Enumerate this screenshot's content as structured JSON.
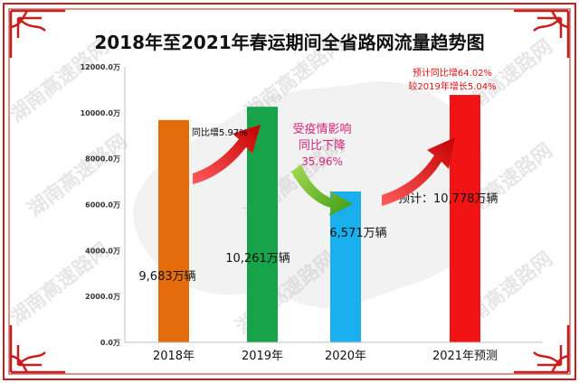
{
  "chart_data": {
    "type": "bar",
    "title": "2018年至2021年春运期间全省路网流量趋势图",
    "categories": [
      "2018年",
      "2019年",
      "2020年",
      "2021年预测"
    ],
    "values": [
      9683,
      10261,
      6571,
      10778
    ],
    "bar_colors": [
      "#e46c0a",
      "#17a34a",
      "#1ab0f0",
      "#f21414"
    ],
    "value_labels": [
      "9,683万辆",
      "10,261万辆",
      "6,571万辆",
      "预计：10,778万辆"
    ],
    "y_ticks": [
      0,
      2000,
      4000,
      6000,
      8000,
      10000,
      12000
    ],
    "y_tick_labels": [
      "0.0万",
      "2000.0万",
      "4000.0万",
      "6000.0万",
      "8000.0万",
      "10000.0万",
      "12000.0万"
    ],
    "ylim": [
      0,
      12000
    ],
    "grid": false,
    "xlabel": "",
    "ylabel": "",
    "annotations": {
      "yoy_2019": "同比增5.97%",
      "covid_line1": "受疫情影响",
      "covid_line2": "同比下降",
      "covid_line3": "35.96%",
      "forecast_line1": "预计同比增64.02%",
      "forecast_line2": "较2019年增长5.04%"
    },
    "colors": {
      "frame": "#c81e1e",
      "annotation_red": "#e01010",
      "covid_text": "#d6247a",
      "arrow_red": "#e01818",
      "arrow_green": "#4cae1a"
    }
  },
  "watermark": "湖南高速路网"
}
